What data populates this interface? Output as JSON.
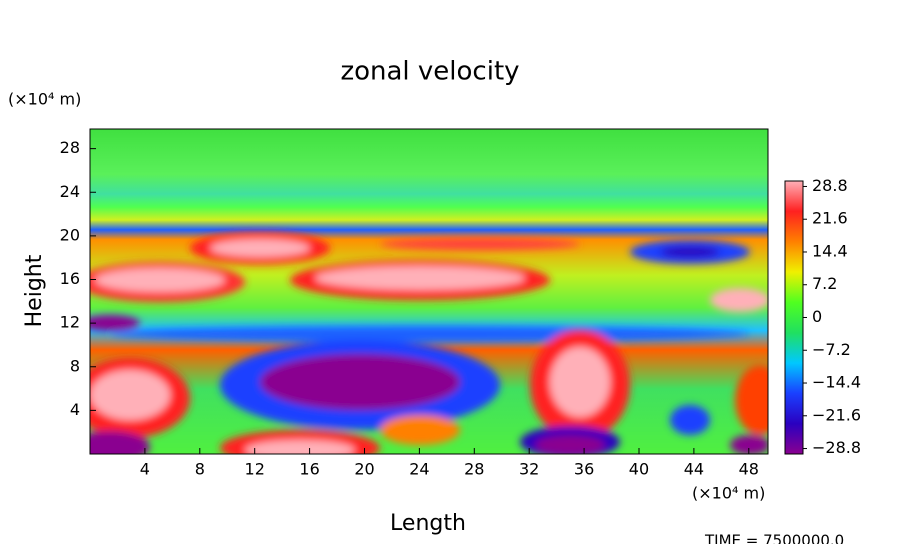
{
  "chart_data": {
    "type": "heatmap",
    "title": "zonal velocity",
    "x_label": "Length",
    "y_label": "Height",
    "x_unit": "(×10⁴ m)",
    "y_unit": "(×10⁴ m)",
    "footer": "TIME = 7500000.0",
    "xlim": [
      0,
      49.4
    ],
    "xticks": [
      4,
      8,
      12,
      16,
      20,
      24,
      28,
      32,
      36,
      40,
      44,
      48
    ],
    "ylim": [
      0,
      29.8
    ],
    "yticks": [
      4,
      8,
      12,
      16,
      20,
      24,
      28
    ],
    "clim": [
      -30,
      30
    ],
    "cticks": [
      {
        "value": 28.8,
        "label": "28.8"
      },
      {
        "value": 21.6,
        "label": "21.6"
      },
      {
        "value": 14.4,
        "label": "14.4"
      },
      {
        "value": 7.2,
        "label": "7.2"
      },
      0,
      {
        "value": -7.2,
        "label": "−7.2"
      },
      {
        "value": -14.4,
        "label": "−14.4"
      },
      {
        "value": -21.6,
        "label": "−21.6"
      },
      {
        "value": -28.8,
        "label": "−28.8"
      }
    ],
    "colormap": [
      "#8a0090",
      "#2a00c0",
      "#1a40ff",
      "#00c8ff",
      "#20e060",
      "#50ff20",
      "#f0f000",
      "#ff8000",
      "#ff2020",
      "#ffb0b8"
    ]
  }
}
